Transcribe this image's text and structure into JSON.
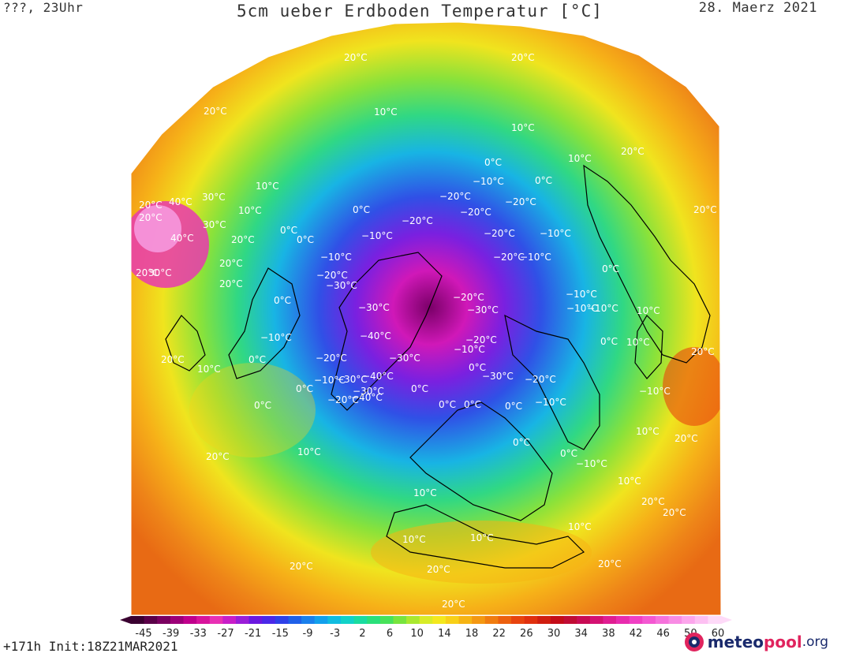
{
  "header": {
    "left": "???, 23Uhr",
    "title": "5cm ueber Erdboden Temperatur [°C]",
    "date": "28. Maerz 2021"
  },
  "footer": {
    "run": "+171h  Init:18Z21MAR2021",
    "logo_part1": "meteo",
    "logo_part2": "pool",
    "logo_part3": ".org"
  },
  "colors": {
    "ocean_warm": "#ee7c1a",
    "ocean_mid": "#f9c51e",
    "ocean_cool": "#45d86e",
    "land_cold": "#4862e0",
    "arctic": "#d61cc8",
    "coast": "#000000"
  },
  "legend": {
    "unit": "°C",
    "ticks": [
      "-45",
      "-39",
      "-33",
      "-27",
      "-21",
      "-15",
      "-9",
      "-3",
      "2",
      "6",
      "10",
      "14",
      "18",
      "22",
      "26",
      "30",
      "34",
      "38",
      "42",
      "46",
      "50",
      "60"
    ],
    "colors": [
      "#3a0030",
      "#5a0048",
      "#7a0060",
      "#9c0078",
      "#c0008c",
      "#d8149c",
      "#e830b4",
      "#c81ec8",
      "#9a1ed8",
      "#6a18e0",
      "#4a28e8",
      "#2e40e8",
      "#1f60e8",
      "#1a80ec",
      "#12a0ec",
      "#10bce0",
      "#12d2c8",
      "#1adca0",
      "#2ae07a",
      "#48e25a",
      "#78e43e",
      "#aae830",
      "#d8ec28",
      "#f4e81e",
      "#f8d018",
      "#f6b414",
      "#f49812",
      "#f07c10",
      "#ec600e",
      "#e8440e",
      "#e0300e",
      "#d01e10",
      "#c40c18",
      "#c00c34",
      "#c80c54",
      "#d41272",
      "#e01e92",
      "#e82cae",
      "#f040c4",
      "#f458d2",
      "#f672dc",
      "#f88ce4",
      "#fca6ec",
      "#fdc0f2",
      "#fedaf8"
    ]
  },
  "map_labels": [
    {
      "text": "20°C"
    },
    {
      "text": "20°C"
    },
    {
      "text": "20°C"
    },
    {
      "text": "10°C"
    },
    {
      "text": "10°C"
    },
    {
      "text": "10°C"
    },
    {
      "text": "20°C"
    },
    {
      "text": "0°C"
    },
    {
      "text": "10°C"
    },
    {
      "text": "−10°C"
    },
    {
      "text": "0°C"
    },
    {
      "text": "20°C"
    },
    {
      "text": "20°C"
    },
    {
      "text": "40°C"
    },
    {
      "text": "30°C"
    },
    {
      "text": "−20°C"
    },
    {
      "text": "−20°C"
    },
    {
      "text": "−20°C"
    },
    {
      "text": "0°C"
    },
    {
      "text": "10°C"
    },
    {
      "text": "20°C"
    },
    {
      "text": "30°C"
    },
    {
      "text": "20°C"
    },
    {
      "text": "40°C"
    },
    {
      "text": "−10°C"
    },
    {
      "text": "−20°C"
    },
    {
      "text": "−10°C"
    },
    {
      "text": "20°C"
    },
    {
      "text": "20°C"
    },
    {
      "text": "0°C"
    },
    {
      "text": "−20°C"
    },
    {
      "text": "−20°C"
    },
    {
      "text": "−10°C"
    },
    {
      "text": "0°C"
    },
    {
      "text": "20°C"
    },
    {
      "text": "30°C"
    },
    {
      "text": "−10°C"
    },
    {
      "text": "−30°C"
    },
    {
      "text": "0°C"
    },
    {
      "text": "−30°C"
    },
    {
      "text": "−20°C"
    },
    {
      "text": "−20°C"
    },
    {
      "text": "−30°C"
    },
    {
      "text": "0°C"
    },
    {
      "text": "−10°C"
    },
    {
      "text": "−10°C"
    },
    {
      "text": "−10°C"
    },
    {
      "text": "0°C"
    },
    {
      "text": "10°C"
    },
    {
      "text": "20°C"
    },
    {
      "text": "10°C"
    },
    {
      "text": "−40°C"
    },
    {
      "text": "−20°C"
    },
    {
      "text": "−10°C"
    },
    {
      "text": "0°C"
    },
    {
      "text": "−10°C"
    },
    {
      "text": "20°C"
    },
    {
      "text": "−20°C"
    },
    {
      "text": "−30°C"
    },
    {
      "text": "−40°C"
    },
    {
      "text": "−30°C"
    },
    {
      "text": "0°C"
    },
    {
      "text": "−30°C"
    },
    {
      "text": "−20°C"
    },
    {
      "text": "−10°C"
    },
    {
      "text": "0°C"
    },
    {
      "text": "10°C"
    },
    {
      "text": "0°C"
    },
    {
      "text": "−10°C"
    },
    {
      "text": "−30°C"
    },
    {
      "text": "−40°C"
    },
    {
      "text": "0°C"
    },
    {
      "text": "−20°C"
    },
    {
      "text": "0°C"
    },
    {
      "text": "0°C"
    },
    {
      "text": "0°C"
    },
    {
      "text": "−10°C"
    },
    {
      "text": "10°C"
    },
    {
      "text": "20°C"
    },
    {
      "text": "10°C"
    },
    {
      "text": "0°C"
    },
    {
      "text": "0°C"
    },
    {
      "text": "−10°C"
    },
    {
      "text": "10°C"
    },
    {
      "text": "20°C"
    },
    {
      "text": "10°C"
    },
    {
      "text": "20°C"
    },
    {
      "text": "10°C"
    },
    {
      "text": "10°C"
    },
    {
      "text": "20°C"
    },
    {
      "text": "20°C"
    },
    {
      "text": "20°C"
    },
    {
      "text": "10°C"
    },
    {
      "text": "20°C"
    },
    {
      "text": "20°C"
    }
  ]
}
